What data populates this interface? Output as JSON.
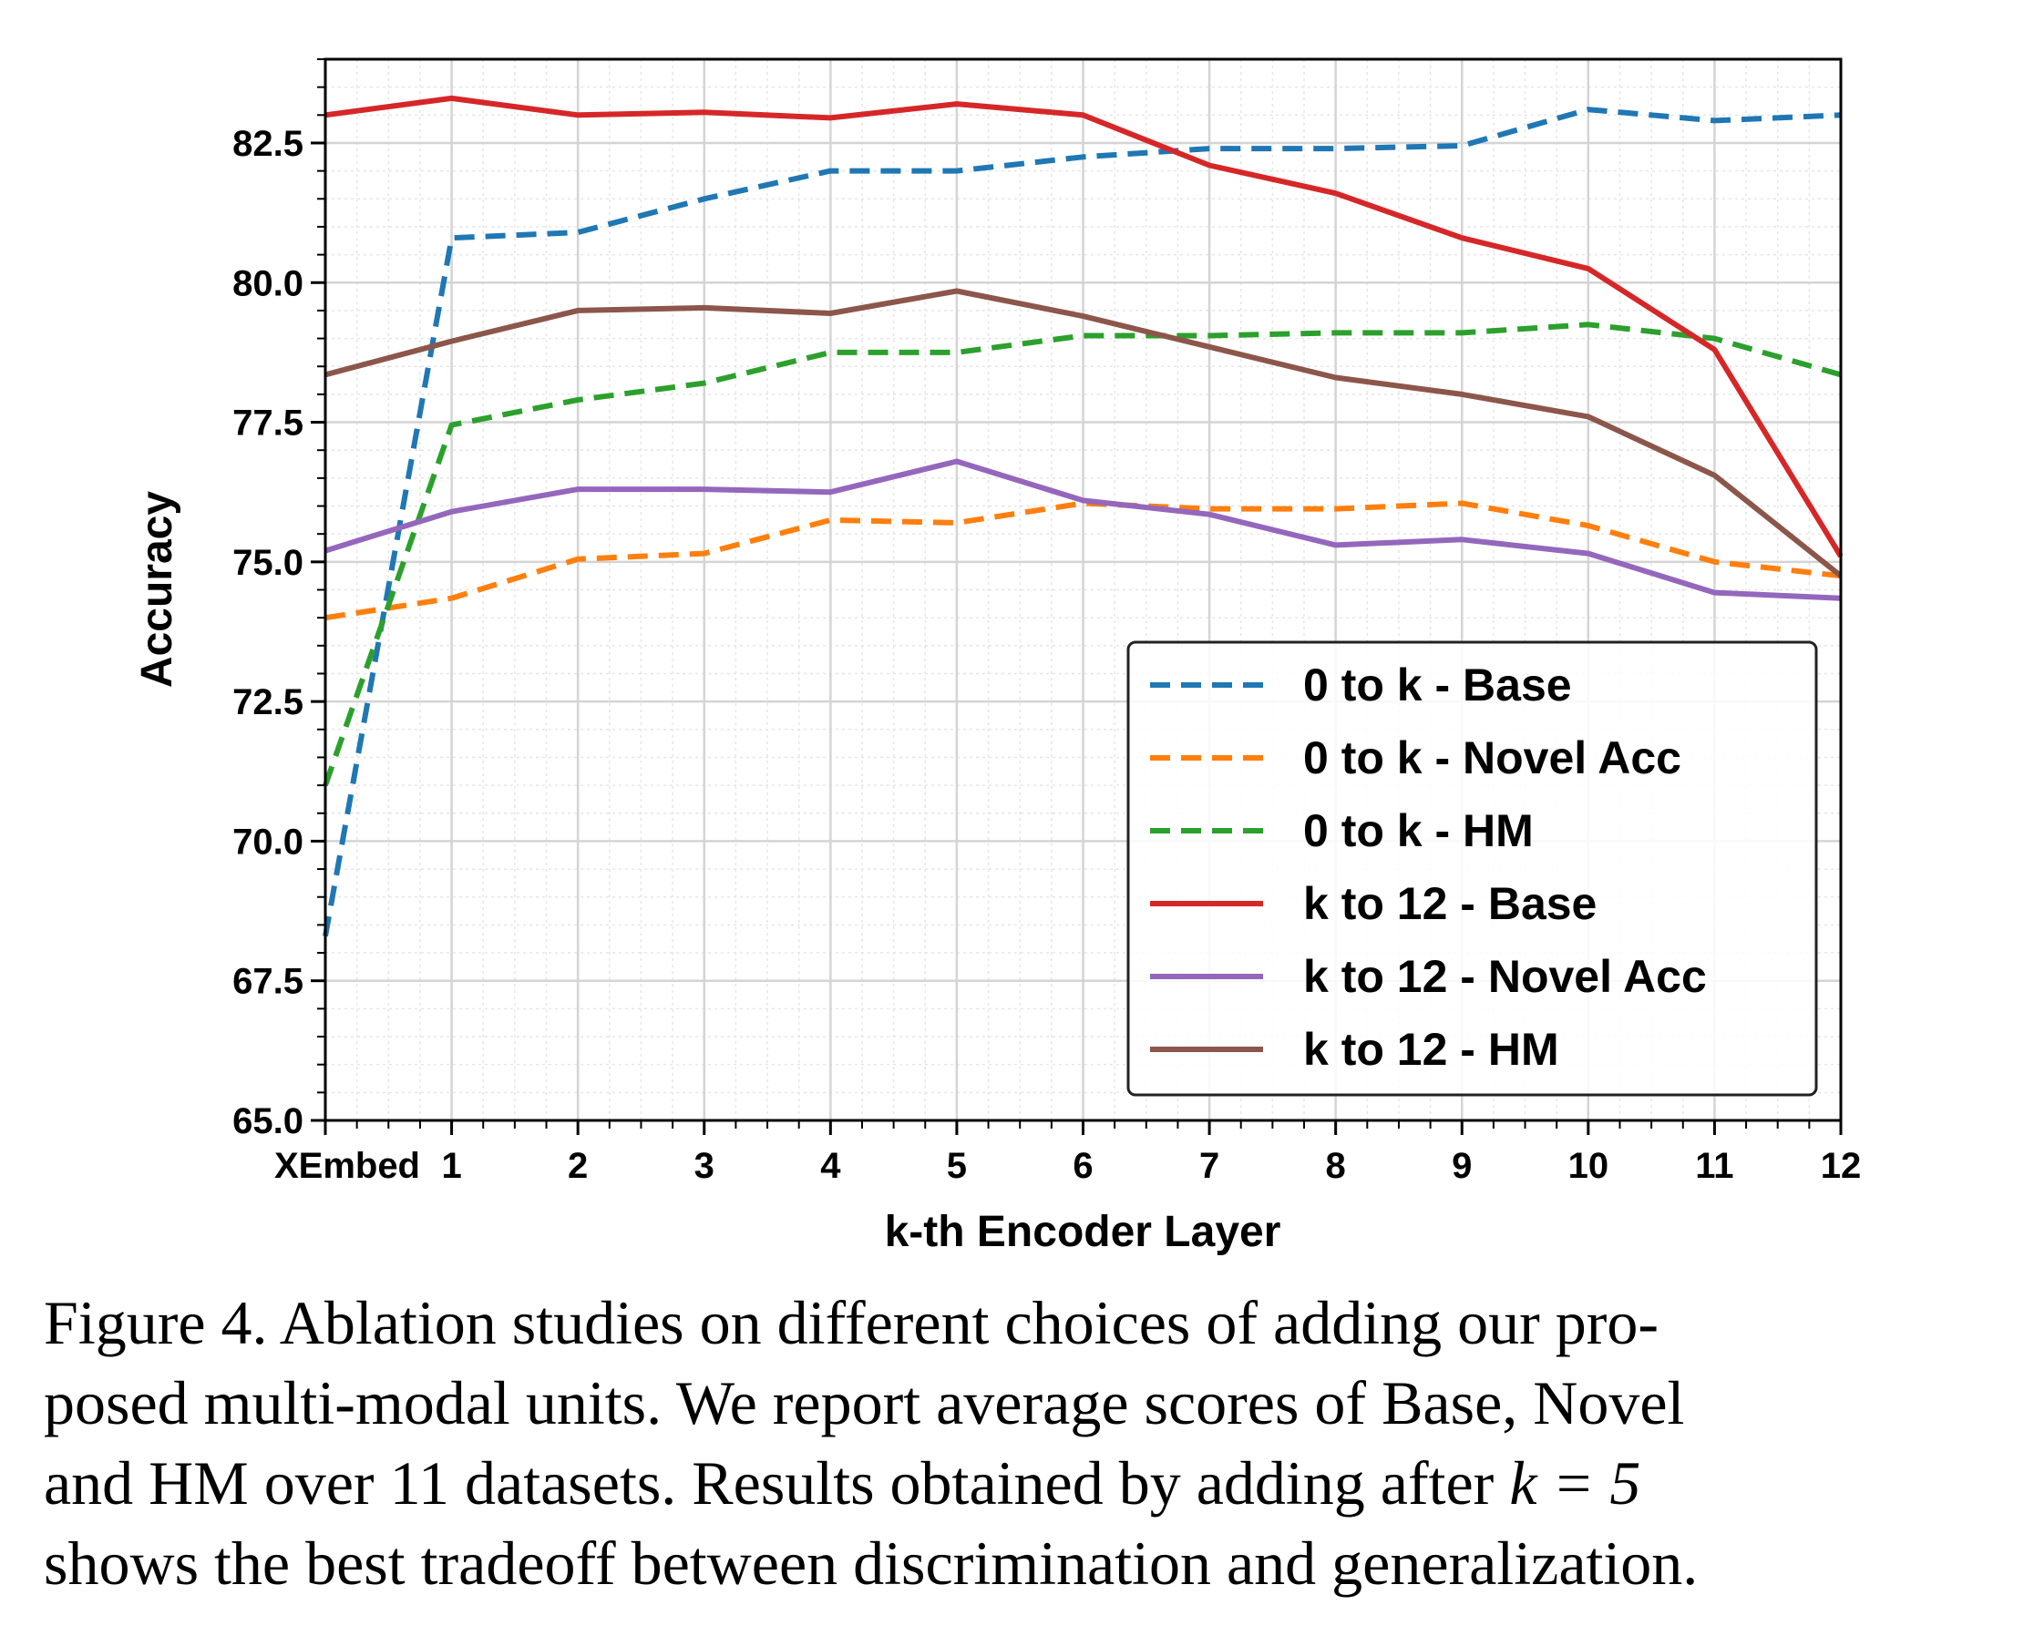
{
  "chart_data": {
    "type": "line",
    "xlabel": "k-th Encoder Layer",
    "ylabel": "Accuracy",
    "x_tick_labels": [
      "XEmbed",
      "1",
      "2",
      "3",
      "4",
      "5",
      "6",
      "7",
      "8",
      "9",
      "10",
      "11",
      "12"
    ],
    "ylim": [
      65.0,
      84.0
    ],
    "y_ticks": [
      65.0,
      67.5,
      70.0,
      72.5,
      75.0,
      77.5,
      80.0,
      82.5
    ],
    "y_tick_labels": [
      "65.0",
      "67.5",
      "70.0",
      "72.5",
      "75.0",
      "77.5",
      "80.0",
      "82.5"
    ],
    "grid": true,
    "minor_grid": true,
    "legend_position": "lower-right",
    "series": [
      {
        "name": "0 to k - Base",
        "color": "#1f77b4",
        "style": "dashed",
        "values": [
          68.3,
          80.8,
          80.9,
          81.5,
          82.0,
          82.0,
          82.25,
          82.4,
          82.4,
          82.45,
          83.1,
          82.9,
          83.0
        ]
      },
      {
        "name": "0 to k - Novel Acc",
        "color": "#ff7f0e",
        "style": "dashed",
        "values": [
          74.0,
          74.35,
          75.05,
          75.15,
          75.75,
          75.7,
          76.05,
          75.95,
          75.95,
          76.05,
          75.65,
          75.0,
          74.75
        ]
      },
      {
        "name": "0 to k - HM",
        "color": "#2ca02c",
        "style": "dashed",
        "values": [
          71.0,
          77.45,
          77.9,
          78.2,
          78.75,
          78.75,
          79.05,
          79.05,
          79.1,
          79.1,
          79.25,
          79.0,
          78.35
        ]
      },
      {
        "name": "k to 12 - Base",
        "color": "#d62728",
        "style": "solid",
        "values": [
          83.0,
          83.3,
          83.0,
          83.05,
          82.95,
          83.2,
          83.0,
          82.1,
          81.6,
          80.8,
          80.25,
          78.8,
          75.1
        ]
      },
      {
        "name": "k to 12 - Novel Acc",
        "color": "#9467bd",
        "style": "solid",
        "values": [
          75.2,
          75.9,
          76.3,
          76.3,
          76.25,
          76.8,
          76.1,
          75.85,
          75.3,
          75.4,
          75.15,
          74.45,
          74.35
        ]
      },
      {
        "name": "k to 12 - HM",
        "color": "#8c564b",
        "style": "solid",
        "values": [
          78.35,
          78.95,
          79.5,
          79.55,
          79.45,
          79.85,
          79.4,
          78.85,
          78.3,
          78.0,
          77.6,
          76.55,
          74.75
        ]
      }
    ]
  },
  "caption": {
    "line1": "Figure 4. Ablation studies on different choices of adding our pro-",
    "line2": "posed multi-modal units. We report average scores of Base, Novel",
    "line3_text": "and HM over 11 datasets. Results obtained by adding after ",
    "line3_math": "k = 5",
    "line4": "shows the best tradeoff between discrimination and generalization."
  }
}
